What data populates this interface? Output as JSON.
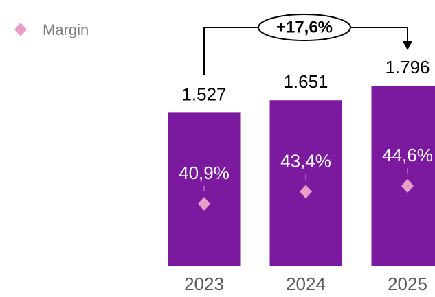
{
  "chart_data": {
    "type": "bar",
    "categories": [
      "2023",
      "2024",
      "2025"
    ],
    "series": [
      {
        "color": "#7b1a9e",
        "values": [
          1527,
          1651,
          1796
        ],
        "value_labels": [
          "1.527",
          "1.651",
          "1.796"
        ]
      },
      {
        "name": "Margin",
        "type": "scatter",
        "color": "#e8a0c8",
        "values": [
          40.9,
          43.4,
          44.6
        ],
        "value_labels": [
          "40,9%",
          "43,4%",
          "44,6%"
        ]
      }
    ],
    "annotation": "+17,6%"
  }
}
